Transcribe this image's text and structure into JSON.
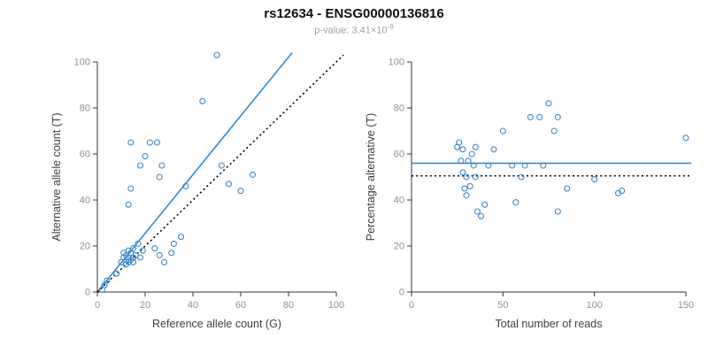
{
  "header": {
    "title": "rs12634 - ENSG00000136816",
    "subtitle_prefix": "p-value: 3.41×10",
    "subtitle_exponent": "-9"
  },
  "colors": {
    "point": "#3a87c8",
    "fit_line": "#2b8cd8",
    "reference_line": "#000000",
    "tick_label": "#8f8f8f",
    "axis_label": "#3d3d3d",
    "axis": "#333333"
  },
  "chart_data": [
    {
      "type": "scatter",
      "panel": "left",
      "xlabel": "Reference allele count (G)",
      "ylabel": "Alternative allele count (T)",
      "xlim": [
        0,
        100
      ],
      "ylim": [
        0,
        100
      ],
      "xticks": [
        0,
        20,
        40,
        60,
        80,
        100
      ],
      "yticks": [
        0,
        20,
        40,
        60,
        80,
        100
      ],
      "grid": false,
      "legend": "none",
      "points": [
        [
          2,
          1
        ],
        [
          3,
          3
        ],
        [
          4,
          5
        ],
        [
          8,
          8
        ],
        [
          10,
          13
        ],
        [
          11,
          15
        ],
        [
          11,
          17
        ],
        [
          12,
          12
        ],
        [
          12,
          16
        ],
        [
          13,
          13
        ],
        [
          13,
          15
        ],
        [
          13,
          18
        ],
        [
          14,
          14
        ],
        [
          14,
          17
        ],
        [
          15,
          13
        ],
        [
          15,
          15
        ],
        [
          15,
          19
        ],
        [
          16,
          16
        ],
        [
          17,
          21
        ],
        [
          18,
          15
        ],
        [
          19,
          18
        ],
        [
          13,
          38
        ],
        [
          14,
          45
        ],
        [
          14,
          65
        ],
        [
          18,
          55
        ],
        [
          20,
          59
        ],
        [
          22,
          65
        ],
        [
          25,
          65
        ],
        [
          26,
          50
        ],
        [
          27,
          55
        ],
        [
          24,
          19
        ],
        [
          26,
          16
        ],
        [
          28,
          13
        ],
        [
          31,
          17
        ],
        [
          32,
          21
        ],
        [
          35,
          24
        ],
        [
          37,
          46
        ],
        [
          44,
          83
        ],
        [
          50,
          103
        ],
        [
          52,
          55
        ],
        [
          55,
          47
        ],
        [
          60,
          44
        ],
        [
          65,
          51
        ]
      ],
      "lines": [
        {
          "name": "fit-line",
          "style": "solid",
          "color": "#2b8cd8",
          "from": [
            0,
            0
          ],
          "to": [
            81.5,
            104
          ]
        },
        {
          "name": "identity-line",
          "style": "dotted",
          "color": "#000000",
          "from": [
            0,
            0
          ],
          "to": [
            103,
            103
          ]
        }
      ]
    },
    {
      "type": "scatter",
      "panel": "right",
      "xlabel": "Total number of reads",
      "ylabel": "Percentage alternative (T)",
      "xlim": [
        0,
        150
      ],
      "ylim": [
        0,
        100
      ],
      "xticks": [
        0,
        50,
        100,
        150
      ],
      "yticks": [
        0,
        20,
        40,
        60,
        80,
        100
      ],
      "grid": false,
      "legend": "none",
      "points": [
        [
          25,
          63
        ],
        [
          26,
          65
        ],
        [
          27,
          57
        ],
        [
          28,
          52
        ],
        [
          28,
          62
        ],
        [
          29,
          45
        ],
        [
          30,
          50
        ],
        [
          30,
          42
        ],
        [
          31,
          57
        ],
        [
          32,
          46
        ],
        [
          33,
          60
        ],
        [
          34,
          55
        ],
        [
          35,
          63
        ],
        [
          35,
          50
        ],
        [
          36,
          35
        ],
        [
          38,
          33
        ],
        [
          40,
          38
        ],
        [
          42,
          55
        ],
        [
          45,
          62
        ],
        [
          50,
          70
        ],
        [
          55,
          55
        ],
        [
          57,
          39
        ],
        [
          60,
          50
        ],
        [
          62,
          55
        ],
        [
          65,
          76
        ],
        [
          70,
          76
        ],
        [
          72,
          55
        ],
        [
          75,
          82
        ],
        [
          78,
          70
        ],
        [
          80,
          76
        ],
        [
          80,
          35
        ],
        [
          85,
          45
        ],
        [
          100,
          49
        ],
        [
          113,
          43
        ],
        [
          115,
          44
        ],
        [
          150,
          67
        ]
      ],
      "lines": [
        {
          "name": "mean-percentage-line",
          "style": "solid",
          "color": "#2b8cd8",
          "from": [
            0,
            56
          ],
          "to": [
            153,
            56
          ]
        },
        {
          "name": "expected-50pct-line",
          "style": "dotted",
          "color": "#000000",
          "from": [
            0,
            50.5
          ],
          "to": [
            153,
            50.5
          ]
        }
      ]
    }
  ]
}
